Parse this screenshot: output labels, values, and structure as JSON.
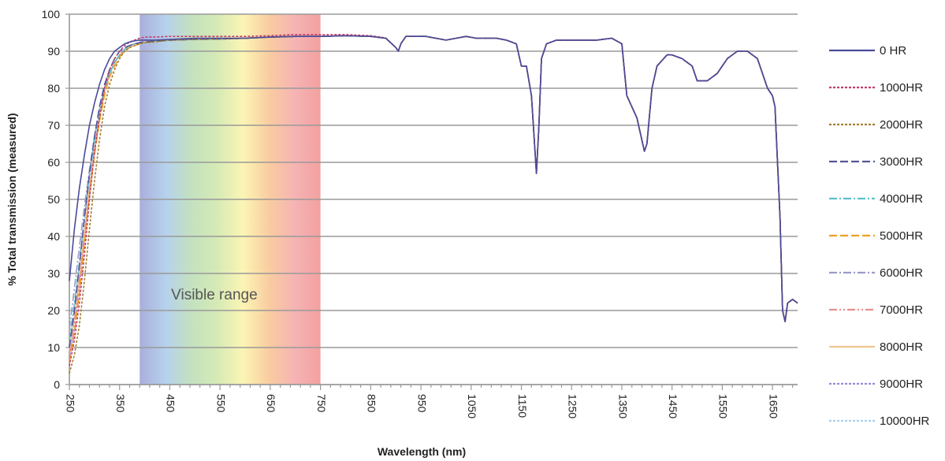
{
  "chart_data": {
    "type": "line",
    "title": "",
    "xlabel": "Wavelength (nm)",
    "ylabel": "% Total transmission (measured)",
    "xlim": [
      250,
      1700
    ],
    "ylim": [
      0,
      100
    ],
    "x_ticks": [
      "250",
      "350",
      "450",
      "550",
      "650",
      "750",
      "850",
      "950",
      "1050",
      "1150",
      "1250",
      "1350",
      "1450",
      "1550",
      "1650"
    ],
    "y_ticks": [
      "0",
      "10",
      "20",
      "30",
      "40",
      "50",
      "60",
      "70",
      "80",
      "90",
      "100"
    ],
    "grid": "horizontal",
    "legend_position": "right",
    "annotations": [
      {
        "text": "Visible range",
        "x_range": [
          390,
          750
        ]
      }
    ],
    "spectrum_band": {
      "x_range": [
        390,
        750
      ],
      "colors": [
        "#9aa0d6",
        "#a9c9ea",
        "#b9dcb4",
        "#cfe6a8",
        "#fbf3a8",
        "#f8c48f",
        "#f4a6a6",
        "#f18f8f"
      ]
    },
    "x": [
      250,
      260,
      270,
      280,
      290,
      300,
      310,
      320,
      330,
      340,
      350,
      360,
      370,
      380,
      390,
      400,
      420,
      450,
      500,
      550,
      600,
      650,
      700,
      750,
      800,
      850,
      880,
      900,
      905,
      910,
      920,
      940,
      960,
      1000,
      1020,
      1040,
      1060,
      1100,
      1120,
      1140,
      1150,
      1160,
      1170,
      1180,
      1185,
      1190,
      1200,
      1220,
      1250,
      1300,
      1330,
      1350,
      1360,
      1380,
      1395,
      1400,
      1410,
      1420,
      1440,
      1450,
      1470,
      1490,
      1500,
      1520,
      1540,
      1560,
      1580,
      1600,
      1620,
      1640,
      1650,
      1655,
      1665,
      1670,
      1675,
      1680,
      1690,
      1700
    ],
    "series": [
      {
        "name": "0 HR",
        "color": "#4a4a9a",
        "dash": "",
        "values": [
          28,
          42,
          53,
          62,
          70,
          76,
          81,
          85,
          88,
          90,
          91,
          92,
          92.5,
          92.8,
          93,
          93,
          93,
          93.2,
          93.5,
          93.5,
          93.5,
          93.8,
          94,
          94,
          94.2,
          94,
          93.5,
          91,
          90,
          92,
          94,
          94,
          94,
          93,
          93.5,
          94,
          93.5,
          93.5,
          93,
          92,
          86,
          86,
          78,
          57,
          70,
          88,
          92,
          93,
          93,
          93,
          93.5,
          92,
          78,
          72,
          63,
          65,
          80,
          86,
          89,
          89,
          88,
          86,
          82,
          82,
          84,
          88,
          90,
          90,
          88,
          80,
          78,
          75,
          45,
          20,
          17,
          22,
          23,
          22
        ]
      },
      {
        "name": "1000HR",
        "color": "#c43c6a",
        "dash": "3,2",
        "values": [
          5,
          12,
          22,
          35,
          50,
          63,
          72,
          80,
          85,
          88,
          90,
          91.5,
          92.5,
          93,
          93.5,
          93.8,
          93.8,
          94,
          94,
          94,
          94,
          94.2,
          94.5,
          94.5,
          94.5,
          94.2,
          93.6,
          91,
          90,
          92,
          94,
          94,
          94,
          93,
          93.5,
          94,
          93.5,
          93.5,
          93,
          92,
          86,
          86,
          78,
          57,
          70,
          88,
          92,
          93,
          93,
          93,
          93.5,
          92,
          78,
          72,
          63,
          65,
          80,
          86,
          89,
          89,
          88,
          86,
          82,
          82,
          84,
          88,
          90,
          90,
          88,
          80,
          78,
          75,
          45,
          20,
          17,
          22,
          23,
          22
        ]
      },
      {
        "name": "2000HR",
        "color": "#a08030",
        "dash": "3,2",
        "values": [
          3,
          8,
          16,
          28,
          42,
          55,
          66,
          75,
          81,
          85,
          88,
          90,
          91,
          91.5,
          92,
          92.3,
          92.5,
          93,
          93.2,
          93.3,
          93.5,
          93.8,
          94,
          94,
          94.2,
          94,
          93.5,
          91,
          90,
          92,
          94,
          94,
          94,
          93,
          93.5,
          94,
          93.5,
          93.5,
          93,
          92,
          86,
          86,
          78,
          57,
          70,
          88,
          92,
          93,
          93,
          93,
          93.5,
          92,
          78,
          72,
          63,
          65,
          80,
          86,
          89,
          89,
          88,
          86,
          82,
          82,
          84,
          88,
          90,
          90,
          88,
          80,
          78,
          75,
          45,
          20,
          17,
          22,
          23,
          22
        ]
      },
      {
        "name": "3000HR",
        "color": "#55559a",
        "dash": "10,4",
        "values": [
          10,
          20,
          32,
          45,
          57,
          67,
          75,
          81,
          85,
          88,
          90,
          91,
          91.5,
          92,
          92.3,
          92.5,
          92.7,
          93,
          93.2,
          93.3,
          93.5,
          93.8,
          94,
          94,
          94.2,
          94,
          93.5,
          91,
          90,
          92,
          94,
          94,
          94,
          93,
          93.5,
          94,
          93.5,
          93.5,
          93,
          92,
          86,
          86,
          78,
          57,
          70,
          88,
          92,
          93,
          93,
          93,
          93.5,
          92,
          78,
          72,
          63,
          65,
          80,
          86,
          89,
          89,
          88,
          86,
          82,
          82,
          84,
          88,
          90,
          90,
          88,
          80,
          78,
          75,
          45,
          20,
          17,
          22,
          23,
          22
        ]
      },
      {
        "name": "4000HR",
        "color": "#5cc0c8",
        "dash": "10,3,2,3",
        "values": [
          12,
          22,
          33,
          45,
          56,
          66,
          74,
          80,
          84,
          87,
          89,
          90.5,
          91.5,
          92,
          92.3,
          92.5,
          92.8,
          93,
          93.2,
          93.3,
          93.5,
          93.8,
          94,
          94,
          94.2,
          94,
          93.5,
          91,
          90,
          92,
          94,
          94,
          94,
          93,
          93.5,
          94,
          93.5,
          93.5,
          93,
          92,
          86,
          86,
          78,
          57,
          70,
          88,
          92,
          93,
          93,
          93,
          93.5,
          92,
          78,
          72,
          63,
          65,
          80,
          86,
          89,
          89,
          88,
          86,
          82,
          82,
          84,
          88,
          90,
          90,
          88,
          80,
          78,
          75,
          45,
          20,
          17,
          22,
          23,
          22
        ]
      },
      {
        "name": "5000HR",
        "color": "#f0a020",
        "dash": "10,4",
        "values": [
          6,
          14,
          25,
          38,
          51,
          62,
          71,
          78,
          83,
          86,
          88.5,
          90,
          91,
          91.5,
          92,
          92.3,
          92.6,
          93,
          93.2,
          93.3,
          93.5,
          93.8,
          94,
          94,
          94.2,
          94,
          93.5,
          91,
          90,
          92,
          94,
          94,
          94,
          93,
          93.5,
          94,
          93.5,
          93.5,
          93,
          92,
          86,
          86,
          78,
          57,
          70,
          88,
          92,
          93,
          93,
          93,
          93.5,
          92,
          78,
          72,
          63,
          65,
          80,
          86,
          89,
          89,
          88,
          86,
          82,
          82,
          84,
          88,
          90,
          90,
          88,
          80,
          78,
          75,
          45,
          20,
          17,
          22,
          23,
          22
        ]
      },
      {
        "name": "6000HR",
        "color": "#9a9ac8",
        "dash": "10,3,2,3",
        "values": [
          15,
          26,
          37,
          48,
          58,
          67,
          74,
          80,
          84,
          87,
          89,
          90.5,
          91.5,
          92,
          92.3,
          92.5,
          92.8,
          93,
          93.2,
          93.3,
          93.5,
          93.8,
          94,
          94,
          94.2,
          94,
          93.5,
          91,
          90,
          92,
          94,
          94,
          94,
          93,
          93.5,
          94,
          93.5,
          93.5,
          93,
          92,
          86,
          86,
          78,
          57,
          70,
          88,
          92,
          93,
          93,
          93,
          93.5,
          92,
          78,
          72,
          63,
          65,
          80,
          86,
          89,
          89,
          88,
          86,
          82,
          82,
          84,
          88,
          90,
          90,
          88,
          80,
          78,
          75,
          45,
          20,
          17,
          22,
          23,
          22
        ]
      },
      {
        "name": "7000HR",
        "color": "#e89090",
        "dash": "10,3,2,3,2,3",
        "values": [
          8,
          17,
          28,
          40,
          52,
          63,
          72,
          79,
          84,
          87,
          89,
          90.5,
          91.5,
          92,
          92.3,
          92.6,
          92.8,
          93,
          93.2,
          93.3,
          93.5,
          93.8,
          94,
          94,
          94.2,
          94,
          93.5,
          91,
          90,
          92,
          94,
          94,
          94,
          93,
          93.5,
          94,
          93.5,
          93.5,
          93,
          92,
          86,
          86,
          78,
          57,
          70,
          88,
          92,
          93,
          93,
          93,
          93.5,
          92,
          78,
          72,
          63,
          65,
          80,
          86,
          89,
          89,
          88,
          86,
          82,
          82,
          84,
          88,
          90,
          90,
          88,
          80,
          78,
          75,
          45,
          20,
          17,
          22,
          23,
          22
        ]
      },
      {
        "name": "8000HR",
        "color": "#f0c890",
        "dash": "",
        "values": [
          9,
          18,
          29,
          41,
          53,
          63,
          72,
          79,
          84,
          87,
          89,
          90.5,
          91.5,
          92,
          92.3,
          92.6,
          92.8,
          93,
          93.2,
          93.3,
          93.5,
          93.8,
          94,
          94,
          94.2,
          94,
          93.5,
          91,
          90,
          92,
          94,
          94,
          94,
          93,
          93.5,
          94,
          93.5,
          93.5,
          93,
          92,
          86,
          86,
          78,
          57,
          70,
          88,
          92,
          93,
          93,
          93,
          93.5,
          92,
          78,
          72,
          63,
          65,
          80,
          86,
          89,
          89,
          88,
          86,
          82,
          82,
          84,
          88,
          90,
          90,
          88,
          80,
          78,
          75,
          45,
          20,
          17,
          22,
          23,
          22
        ]
      },
      {
        "name": "9000HR",
        "color": "#9a88d8",
        "dash": "3,2",
        "values": [
          7,
          15,
          26,
          39,
          52,
          63,
          72,
          79,
          84,
          87,
          89,
          90.5,
          91.5,
          92,
          92.3,
          92.6,
          92.8,
          93,
          93.2,
          93.3,
          93.5,
          93.8,
          94,
          94,
          94.2,
          94,
          93.5,
          91,
          90,
          92,
          94,
          94,
          94,
          93,
          93.5,
          94,
          93.5,
          93.5,
          93,
          92,
          86,
          86,
          78,
          57,
          70,
          88,
          92,
          93,
          93,
          93,
          93.5,
          92,
          78,
          72,
          63,
          65,
          80,
          86,
          89,
          89,
          88,
          86,
          82,
          82,
          84,
          88,
          90,
          90,
          88,
          80,
          78,
          75,
          45,
          20,
          17,
          22,
          23,
          22
        ]
      },
      {
        "name": "10000HR",
        "color": "#a8d0f0",
        "dash": "3,2",
        "values": [
          11,
          21,
          32,
          44,
          55,
          65,
          73,
          80,
          84,
          87,
          89,
          90.5,
          91.5,
          92,
          92.3,
          92.6,
          92.8,
          93,
          93.2,
          93.3,
          93.5,
          93.8,
          94,
          94,
          94.2,
          94,
          93.5,
          91,
          90,
          92,
          94,
          94,
          94,
          93,
          93.5,
          94,
          93.5,
          93.5,
          93,
          92,
          86,
          86,
          78,
          57,
          70,
          88,
          92,
          93,
          93,
          93,
          93.5,
          92,
          78,
          72,
          63,
          65,
          80,
          86,
          89,
          89,
          88,
          86,
          82,
          82,
          84,
          88,
          90,
          90,
          88,
          80,
          78,
          75,
          45,
          20,
          17,
          22,
          23,
          22
        ]
      }
    ]
  }
}
